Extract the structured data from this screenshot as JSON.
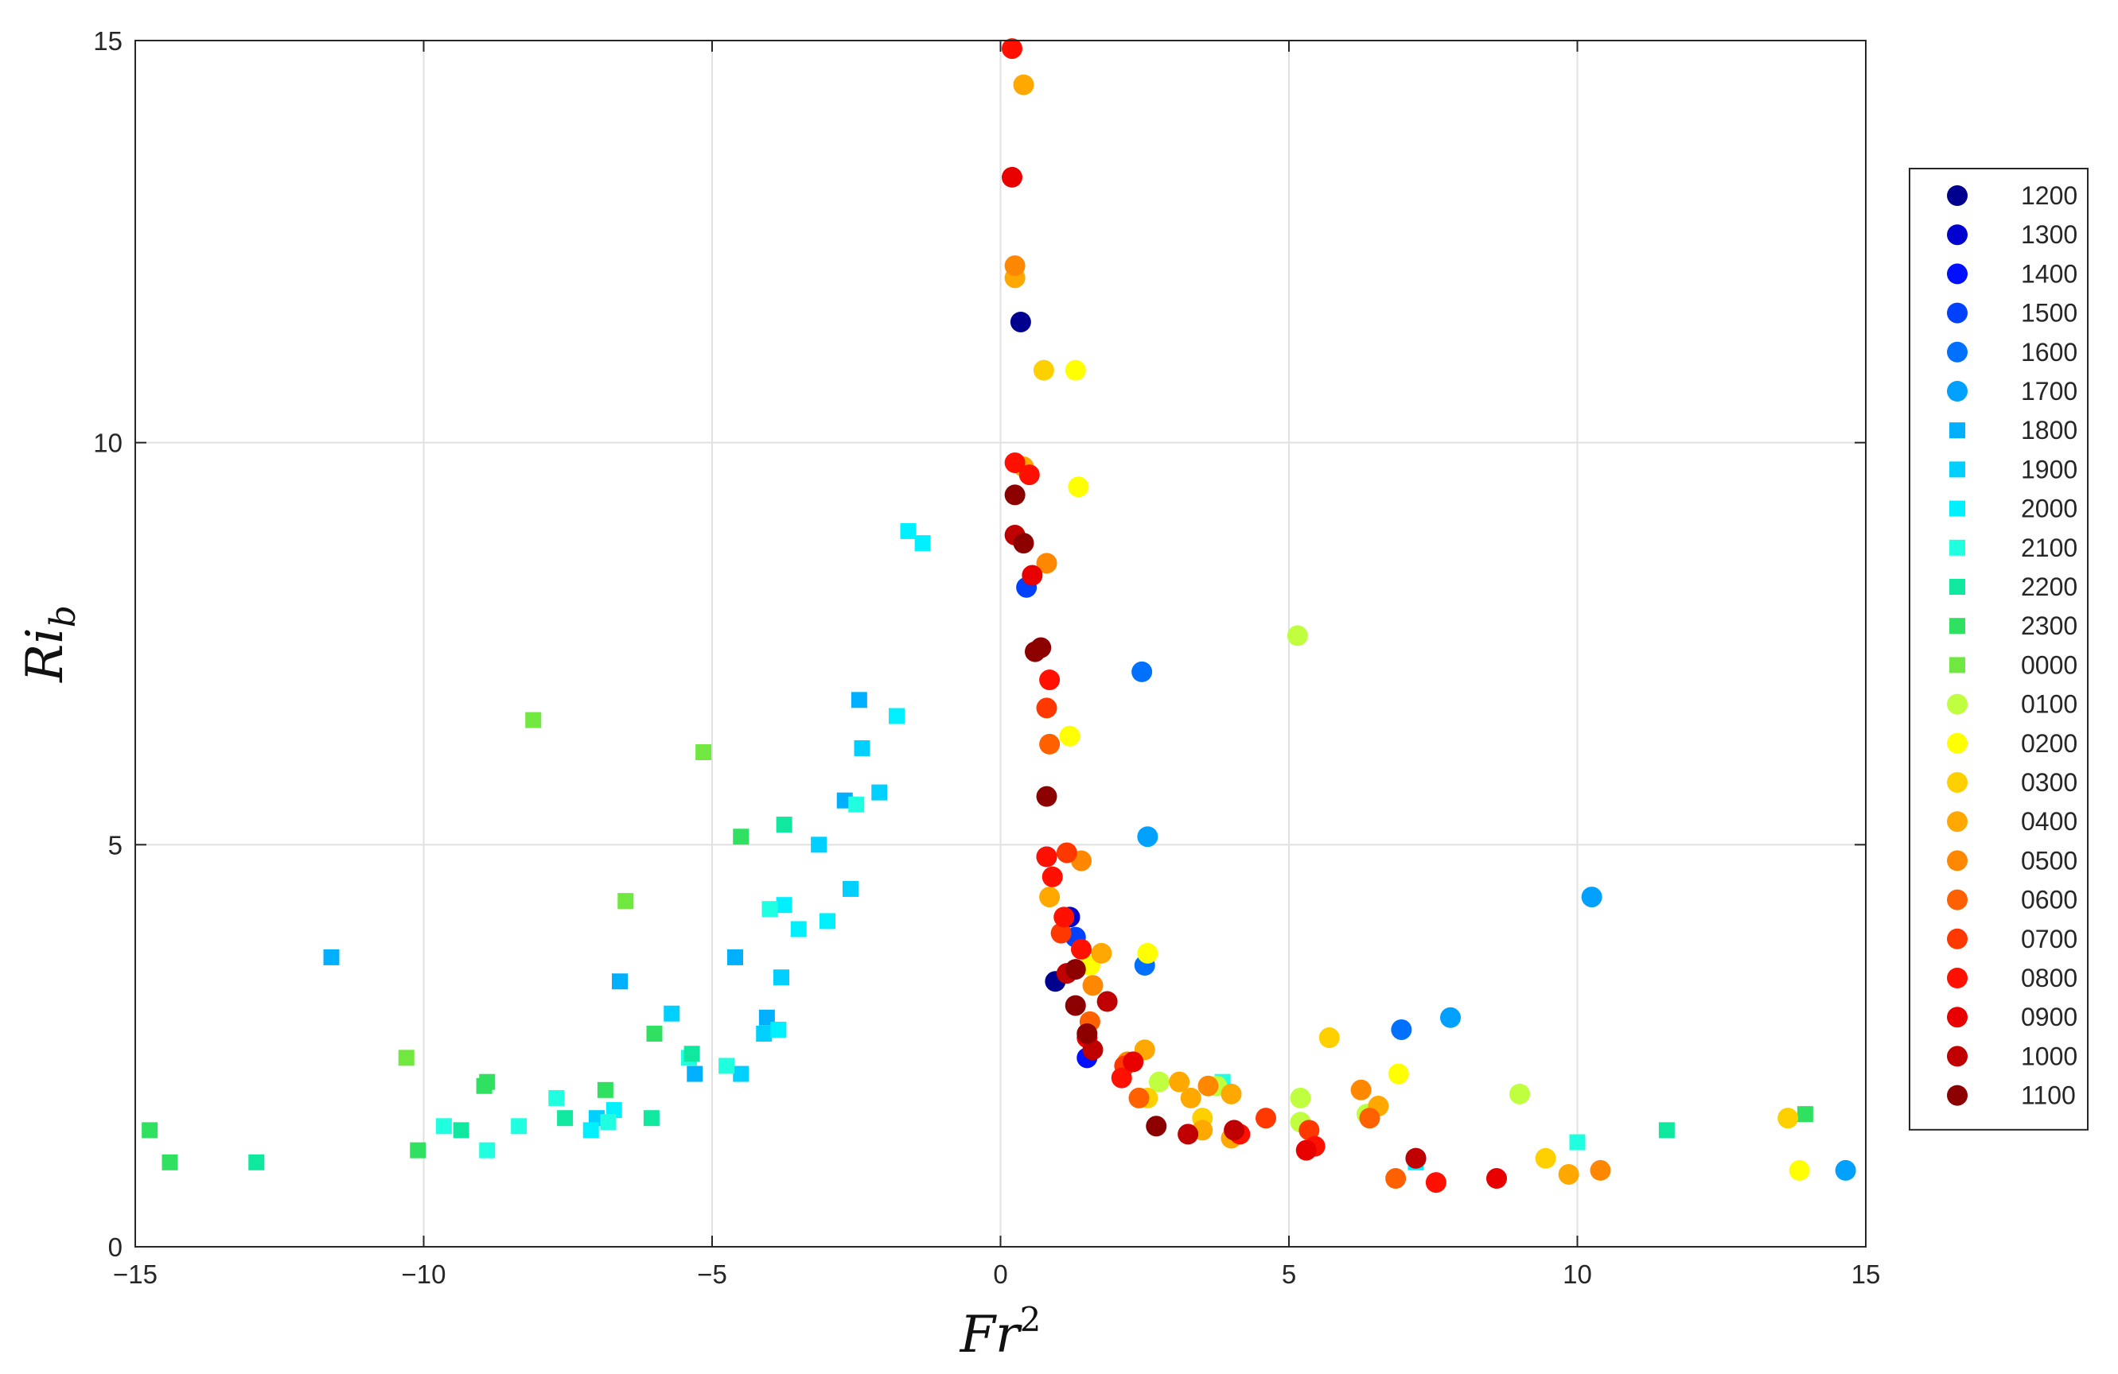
{
  "chart_data": {
    "type": "scatter",
    "xlabel": "Fr",
    "xlabel_sup": "2",
    "ylabel": "Ri",
    "ylabel_sub": "b",
    "xlim": [
      -15,
      15
    ],
    "ylim": [
      0,
      15
    ],
    "xticks": [
      -15,
      -10,
      -5,
      0,
      5,
      10,
      15
    ],
    "yticks": [
      0,
      5,
      10,
      15
    ],
    "xtick_labels": [
      "−15",
      "−10",
      "−5",
      "0",
      "5",
      "10",
      "15"
    ],
    "ytick_labels": [
      "0",
      "5",
      "10",
      "15"
    ],
    "grid": true,
    "legend_position": "right",
    "series": [
      {
        "name": "1200",
        "color": "#00008f",
        "marker": "circle",
        "points": [
          [
            0.35,
            11.5
          ],
          [
            0.95,
            3.3
          ]
        ]
      },
      {
        "name": "1300",
        "color": "#0000cf",
        "marker": "circle",
        "points": [
          [
            1.2,
            4.1
          ],
          [
            7.2,
            1.1
          ]
        ]
      },
      {
        "name": "1400",
        "color": "#0010ff",
        "marker": "circle",
        "points": [
          [
            0.8,
            4.85
          ],
          [
            1.5,
            2.35
          ]
        ]
      },
      {
        "name": "1500",
        "color": "#0040ff",
        "marker": "circle",
        "points": [
          [
            0.45,
            8.2
          ],
          [
            1.3,
            3.85
          ]
        ]
      },
      {
        "name": "1600",
        "color": "#0070ff",
        "marker": "circle",
        "points": [
          [
            2.45,
            7.15
          ],
          [
            2.5,
            3.5
          ],
          [
            6.95,
            2.7
          ]
        ]
      },
      {
        "name": "1700",
        "color": "#00a0ff",
        "marker": "circle",
        "points": [
          [
            2.55,
            5.1
          ],
          [
            10.25,
            4.35
          ],
          [
            7.8,
            2.85
          ],
          [
            14.65,
            0.95
          ]
        ]
      },
      {
        "name": "1800",
        "color": "#00b0ff",
        "marker": "square",
        "points": [
          [
            -2.45,
            6.8
          ],
          [
            -11.6,
            3.6
          ],
          [
            -2.7,
            5.55
          ],
          [
            -6.6,
            3.3
          ],
          [
            -4.6,
            3.6
          ],
          [
            -5.3,
            2.15
          ],
          [
            -4.05,
            2.85
          ]
        ]
      },
      {
        "name": "1900",
        "color": "#00d0ff",
        "marker": "square",
        "points": [
          [
            -2.4,
            6.2
          ],
          [
            -2.1,
            5.65
          ],
          [
            -2.6,
            4.45
          ],
          [
            -3.15,
            5.0
          ],
          [
            -3.8,
            3.35
          ],
          [
            -4.1,
            2.65
          ],
          [
            -5.7,
            2.9
          ],
          [
            -7.0,
            1.6
          ],
          [
            -4.5,
            2.15
          ]
        ]
      },
      {
        "name": "2000",
        "color": "#00f0ff",
        "marker": "square",
        "points": [
          [
            -1.6,
            8.9
          ],
          [
            -1.35,
            8.75
          ],
          [
            -1.8,
            6.6
          ],
          [
            -3.0,
            4.05
          ],
          [
            -3.75,
            4.25
          ],
          [
            -3.5,
            3.95
          ],
          [
            -3.85,
            2.7
          ],
          [
            -7.1,
            1.45
          ],
          [
            -6.7,
            1.7
          ],
          [
            7.2,
            1.05
          ]
        ]
      },
      {
        "name": "2100",
        "color": "#20ffdf",
        "marker": "square",
        "points": [
          [
            -2.5,
            5.5
          ],
          [
            -4.0,
            4.2
          ],
          [
            -4.75,
            2.25
          ],
          [
            -6.8,
            1.55
          ],
          [
            -5.4,
            2.35
          ],
          [
            -7.7,
            1.85
          ],
          [
            -8.35,
            1.5
          ],
          [
            -9.65,
            1.5
          ],
          [
            -8.9,
            1.2
          ],
          [
            3.85,
            2.05
          ],
          [
            10.0,
            1.3
          ]
        ]
      },
      {
        "name": "2200",
        "color": "#10e8a0",
        "marker": "square",
        "points": [
          [
            -3.75,
            5.25
          ],
          [
            -5.35,
            2.4
          ],
          [
            -6.05,
            1.6
          ],
          [
            -7.55,
            1.6
          ],
          [
            -9.35,
            1.45
          ],
          [
            -12.9,
            1.05
          ],
          [
            11.55,
            1.45
          ]
        ]
      },
      {
        "name": "2300",
        "color": "#30e060",
        "marker": "square",
        "points": [
          [
            -4.5,
            5.1
          ],
          [
            -6.0,
            2.65
          ],
          [
            -6.85,
            1.95
          ],
          [
            -8.95,
            2.0
          ],
          [
            -8.9,
            2.05
          ],
          [
            -10.1,
            1.2
          ],
          [
            -14.75,
            1.45
          ],
          [
            -14.4,
            1.05
          ],
          [
            13.95,
            1.65
          ]
        ]
      },
      {
        "name": "0000",
        "color": "#70e840",
        "marker": "square",
        "points": [
          [
            -8.1,
            6.55
          ],
          [
            -5.15,
            6.15
          ],
          [
            -6.5,
            4.3
          ],
          [
            -10.3,
            2.35
          ]
        ]
      },
      {
        "name": "0100",
        "color": "#c0ff40",
        "marker": "circle",
        "points": [
          [
            5.15,
            7.6
          ],
          [
            2.75,
            2.05
          ],
          [
            3.75,
            2.0
          ],
          [
            5.2,
            1.85
          ],
          [
            5.2,
            1.55
          ],
          [
            6.35,
            1.65
          ],
          [
            9.0,
            1.9
          ]
        ]
      },
      {
        "name": "0200",
        "color": "#ffff00",
        "marker": "circle",
        "points": [
          [
            1.3,
            10.9
          ],
          [
            1.35,
            9.45
          ],
          [
            1.2,
            6.35
          ],
          [
            2.55,
            3.65
          ],
          [
            1.55,
            3.5
          ],
          [
            6.9,
            2.15
          ],
          [
            13.85,
            0.95
          ]
        ]
      },
      {
        "name": "0300",
        "color": "#ffd000",
        "marker": "circle",
        "points": [
          [
            0.75,
            10.9
          ],
          [
            5.7,
            2.6
          ],
          [
            2.55,
            1.85
          ],
          [
            3.5,
            1.6
          ],
          [
            9.45,
            1.1
          ],
          [
            13.65,
            1.6
          ]
        ]
      },
      {
        "name": "0400",
        "color": "#ffa800",
        "marker": "circle",
        "points": [
          [
            0.4,
            14.45
          ],
          [
            0.25,
            12.05
          ],
          [
            0.4,
            9.7
          ],
          [
            0.85,
            4.35
          ],
          [
            1.75,
            3.65
          ],
          [
            2.5,
            2.45
          ],
          [
            3.1,
            2.05
          ],
          [
            3.3,
            1.85
          ],
          [
            3.5,
            1.45
          ],
          [
            4.0,
            1.9
          ],
          [
            4.0,
            1.35
          ],
          [
            6.55,
            1.75
          ],
          [
            9.85,
            0.9
          ]
        ]
      },
      {
        "name": "0500",
        "color": "#ff8800",
        "marker": "circle",
        "points": [
          [
            0.25,
            12.2
          ],
          [
            0.8,
            8.5
          ],
          [
            1.4,
            4.8
          ],
          [
            1.6,
            3.25
          ],
          [
            2.2,
            2.3
          ],
          [
            3.6,
            2.0
          ],
          [
            6.25,
            1.95
          ],
          [
            10.4,
            0.95
          ]
        ]
      },
      {
        "name": "0600",
        "color": "#ff6000",
        "marker": "circle",
        "points": [
          [
            0.85,
            6.25
          ],
          [
            1.55,
            2.8
          ],
          [
            2.4,
            1.85
          ],
          [
            6.4,
            1.6
          ],
          [
            6.85,
            0.85
          ]
        ]
      },
      {
        "name": "0700",
        "color": "#ff3800",
        "marker": "circle",
        "points": [
          [
            0.8,
            6.7
          ],
          [
            1.15,
            4.9
          ],
          [
            1.05,
            3.9
          ],
          [
            2.15,
            2.25
          ],
          [
            5.35,
            1.45
          ],
          [
            4.6,
            1.6
          ]
        ]
      },
      {
        "name": "0800",
        "color": "#ff1000",
        "marker": "circle",
        "points": [
          [
            0.2,
            14.9
          ],
          [
            0.25,
            9.75
          ],
          [
            0.5,
            9.6
          ],
          [
            0.85,
            7.05
          ],
          [
            0.8,
            4.85
          ],
          [
            0.9,
            4.6
          ],
          [
            1.1,
            4.1
          ],
          [
            1.4,
            3.7
          ],
          [
            2.1,
            2.1
          ],
          [
            4.15,
            1.4
          ],
          [
            5.45,
            1.25
          ],
          [
            7.55,
            0.8
          ]
        ]
      },
      {
        "name": "0900",
        "color": "#e80000",
        "marker": "circle",
        "points": [
          [
            0.2,
            13.3
          ],
          [
            0.55,
            8.35
          ],
          [
            1.5,
            2.6
          ],
          [
            2.3,
            2.3
          ],
          [
            5.3,
            1.2
          ],
          [
            8.6,
            0.85
          ]
        ]
      },
      {
        "name": "1000",
        "color": "#c00000",
        "marker": "circle",
        "points": [
          [
            0.25,
            8.85
          ],
          [
            1.15,
            3.4
          ],
          [
            1.6,
            2.45
          ],
          [
            1.85,
            3.05
          ],
          [
            3.25,
            1.4
          ],
          [
            4.05,
            1.45
          ],
          [
            7.2,
            1.1
          ]
        ]
      },
      {
        "name": "1100",
        "color": "#8c0000",
        "marker": "circle",
        "points": [
          [
            0.25,
            9.35
          ],
          [
            0.4,
            8.75
          ],
          [
            0.6,
            7.4
          ],
          [
            0.7,
            7.45
          ],
          [
            0.8,
            5.6
          ],
          [
            1.3,
            3.45
          ],
          [
            1.3,
            3.0
          ],
          [
            1.5,
            2.65
          ],
          [
            2.7,
            1.5
          ]
        ]
      }
    ]
  }
}
